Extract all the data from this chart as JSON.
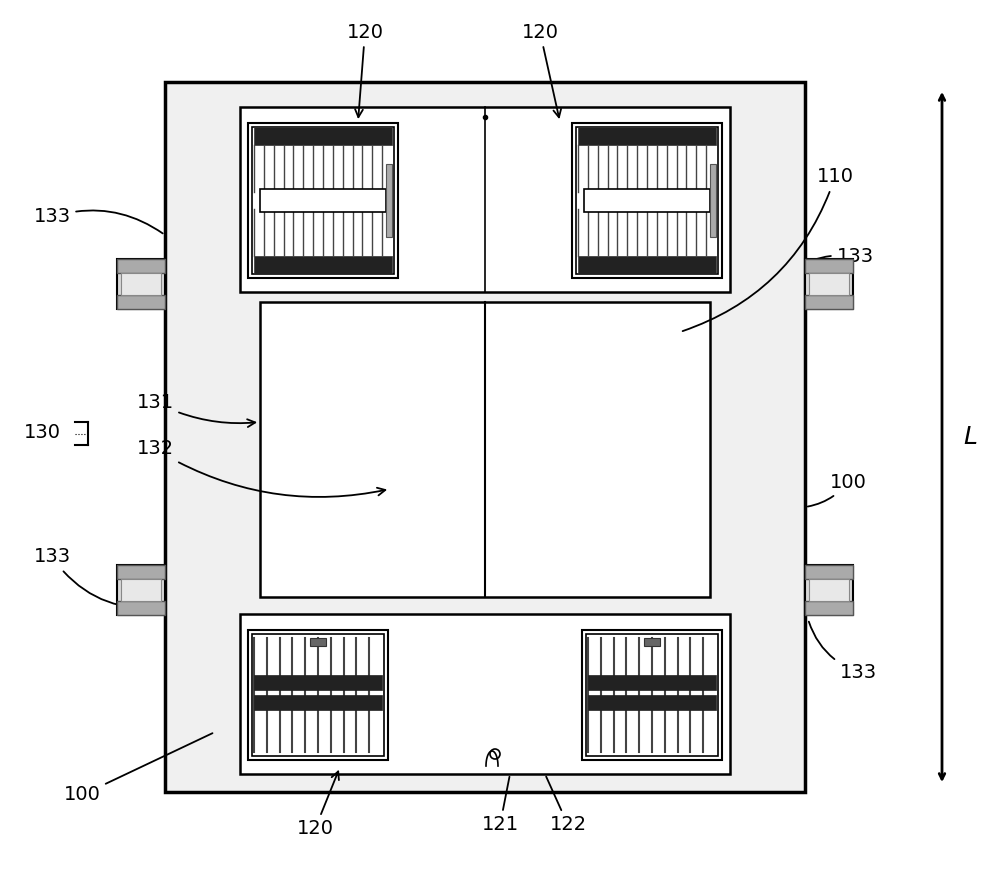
{
  "bg_color": "#ffffff",
  "line_color": "#000000",
  "fig_width": 10.0,
  "fig_height": 8.77,
  "dpi": 100
}
